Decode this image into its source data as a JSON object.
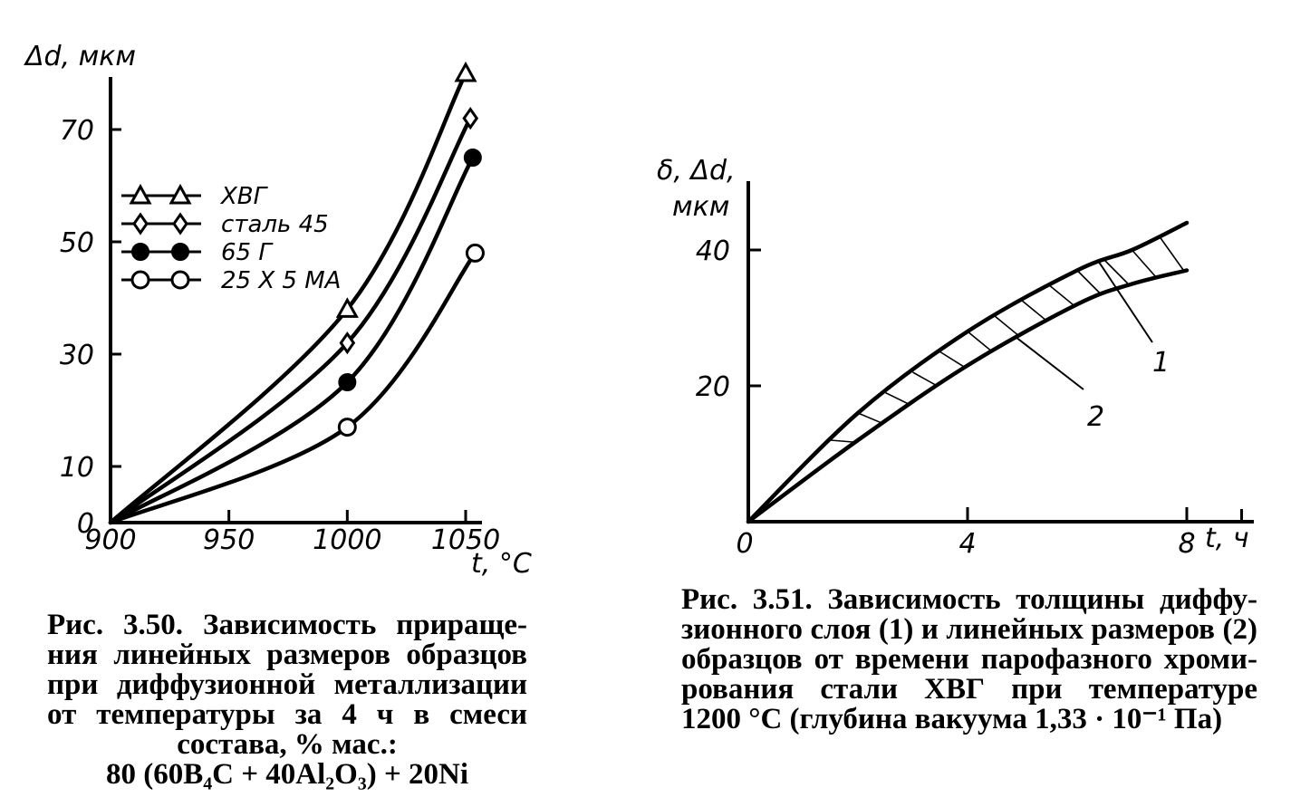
{
  "chart_data": [
    {
      "type": "line",
      "ylabel": "Δd, мкм",
      "xlabel": "t, °C",
      "x_ticks": [
        "900",
        "950",
        "1000",
        "1050"
      ],
      "y_ticks": [
        "0",
        "10",
        "30",
        "50",
        "70"
      ],
      "xlim": [
        900,
        1060
      ],
      "ylim": [
        0,
        80
      ],
      "legend_position": "upper-left",
      "series": [
        {
          "name": "ХВГ",
          "marker": "triangle",
          "x": [
            900,
            1000,
            1050
          ],
          "y": [
            0,
            38,
            80
          ]
        },
        {
          "name": "сталь 45",
          "marker": "diamond",
          "x": [
            900,
            1000,
            1052
          ],
          "y": [
            0,
            32,
            72
          ]
        },
        {
          "name": "65 Г",
          "marker": "filled-circle",
          "x": [
            900,
            1000,
            1053
          ],
          "y": [
            0,
            25,
            65
          ]
        },
        {
          "name": "25 Х 5 МА",
          "marker": "open-circle",
          "x": [
            900,
            1000,
            1054
          ],
          "y": [
            0,
            17,
            48
          ]
        }
      ],
      "caption": [
        "Рис. 3.50. Зависимость прираще-",
        "ния линейных размеров образцов",
        "при диффузионной металлизации",
        "от температуры за 4 ч в смеси",
        "состава, % мас.:",
        "80 (60B₄C + 40Al₂O₃) + 20Ni"
      ]
    },
    {
      "type": "area",
      "ylabel_line1": "δ, Δd,",
      "ylabel_line2": "мкм",
      "xlabel": "t, ч",
      "x_ticks": [
        "0",
        "4",
        "8"
      ],
      "y_ticks": [
        "20",
        "40"
      ],
      "xlim": [
        0,
        9
      ],
      "ylim": [
        0,
        50
      ],
      "series": [
        {
          "name": "1",
          "x": [
            0,
            2,
            4,
            6,
            7,
            8
          ],
          "y": [
            0,
            16,
            28,
            37,
            40,
            44
          ]
        },
        {
          "name": "2",
          "x": [
            0,
            2,
            4,
            6,
            7,
            8
          ],
          "y": [
            0,
            12,
            23,
            32,
            35,
            37
          ]
        }
      ],
      "curve_labels": [
        "1",
        "2"
      ],
      "caption": [
        "Рис. 3.51. Зависимость толщины диффу-",
        "зионного слоя (1) и линейных размеров (2)",
        "образцов от времени парофазного хроми-",
        "рования стали ХВГ при температуре",
        "1200 °С (глубина вакуума 1,33 · 10⁻¹ Па)"
      ]
    }
  ]
}
